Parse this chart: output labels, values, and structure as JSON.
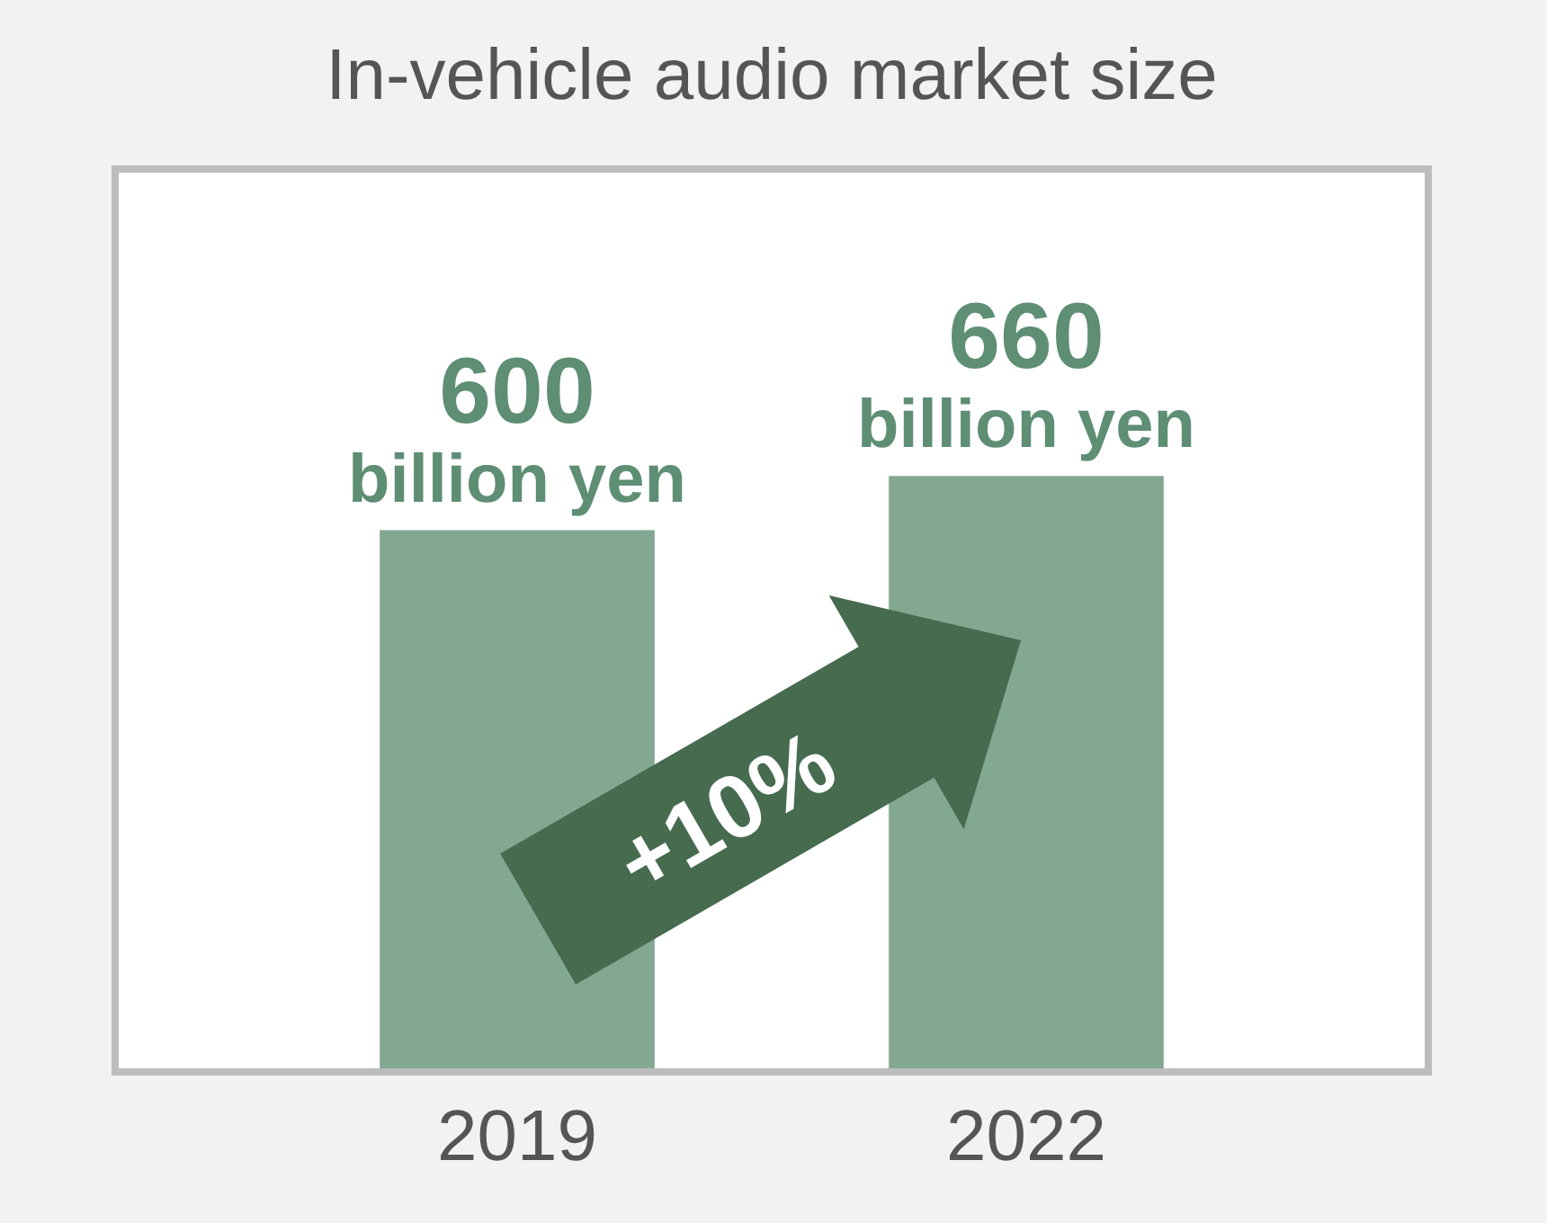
{
  "chart_data": {
    "type": "bar",
    "title": "In-vehicle audio market size",
    "categories": [
      "2019",
      "2022"
    ],
    "values": [
      600,
      660
    ],
    "color": "#82a892",
    "ylim": [
      0,
      1000
    ],
    "value_labels": [
      "600 billion yen",
      "660 billion yen"
    ],
    "annotations": [
      "+10%"
    ]
  }
}
